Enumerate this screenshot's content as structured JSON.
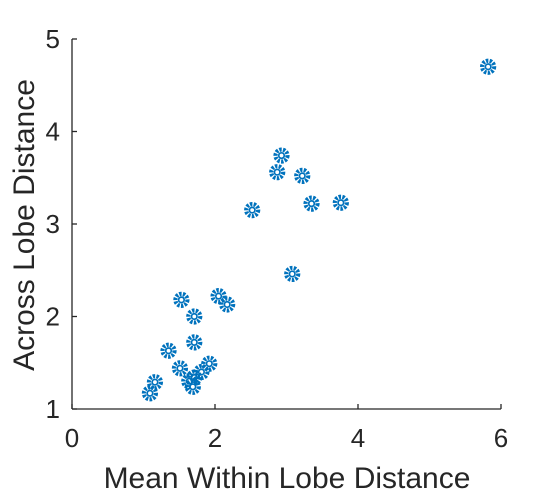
{
  "chart_data": {
    "type": "scatter",
    "title": "",
    "xlabel": "Mean Within Lobe Distance",
    "ylabel": "Across Lobe Distance",
    "xlim": [
      0,
      6
    ],
    "ylim": [
      1,
      5
    ],
    "xticks": [
      "0",
      "2",
      "4",
      "6"
    ],
    "yticks": [
      "1",
      "2",
      "3",
      "4",
      "5"
    ],
    "grid": false,
    "legend": "none",
    "marker": "circle-with-dashed-ring",
    "color": "#0072BD",
    "points": [
      {
        "x": 5.82,
        "y": 4.7
      },
      {
        "x": 2.93,
        "y": 3.74
      },
      {
        "x": 2.87,
        "y": 3.56
      },
      {
        "x": 3.22,
        "y": 3.52
      },
      {
        "x": 3.35,
        "y": 3.22
      },
      {
        "x": 3.76,
        "y": 3.23
      },
      {
        "x": 2.52,
        "y": 3.15
      },
      {
        "x": 3.08,
        "y": 2.46
      },
      {
        "x": 2.05,
        "y": 2.22
      },
      {
        "x": 2.17,
        "y": 2.13
      },
      {
        "x": 1.53,
        "y": 2.18
      },
      {
        "x": 1.71,
        "y": 2.0
      },
      {
        "x": 1.71,
        "y": 1.72
      },
      {
        "x": 1.35,
        "y": 1.63
      },
      {
        "x": 1.51,
        "y": 1.44
      },
      {
        "x": 1.92,
        "y": 1.49
      },
      {
        "x": 1.81,
        "y": 1.4
      },
      {
        "x": 1.71,
        "y": 1.34
      },
      {
        "x": 1.64,
        "y": 1.3
      },
      {
        "x": 1.69,
        "y": 1.24
      },
      {
        "x": 1.16,
        "y": 1.29
      },
      {
        "x": 1.09,
        "y": 1.17
      }
    ]
  }
}
